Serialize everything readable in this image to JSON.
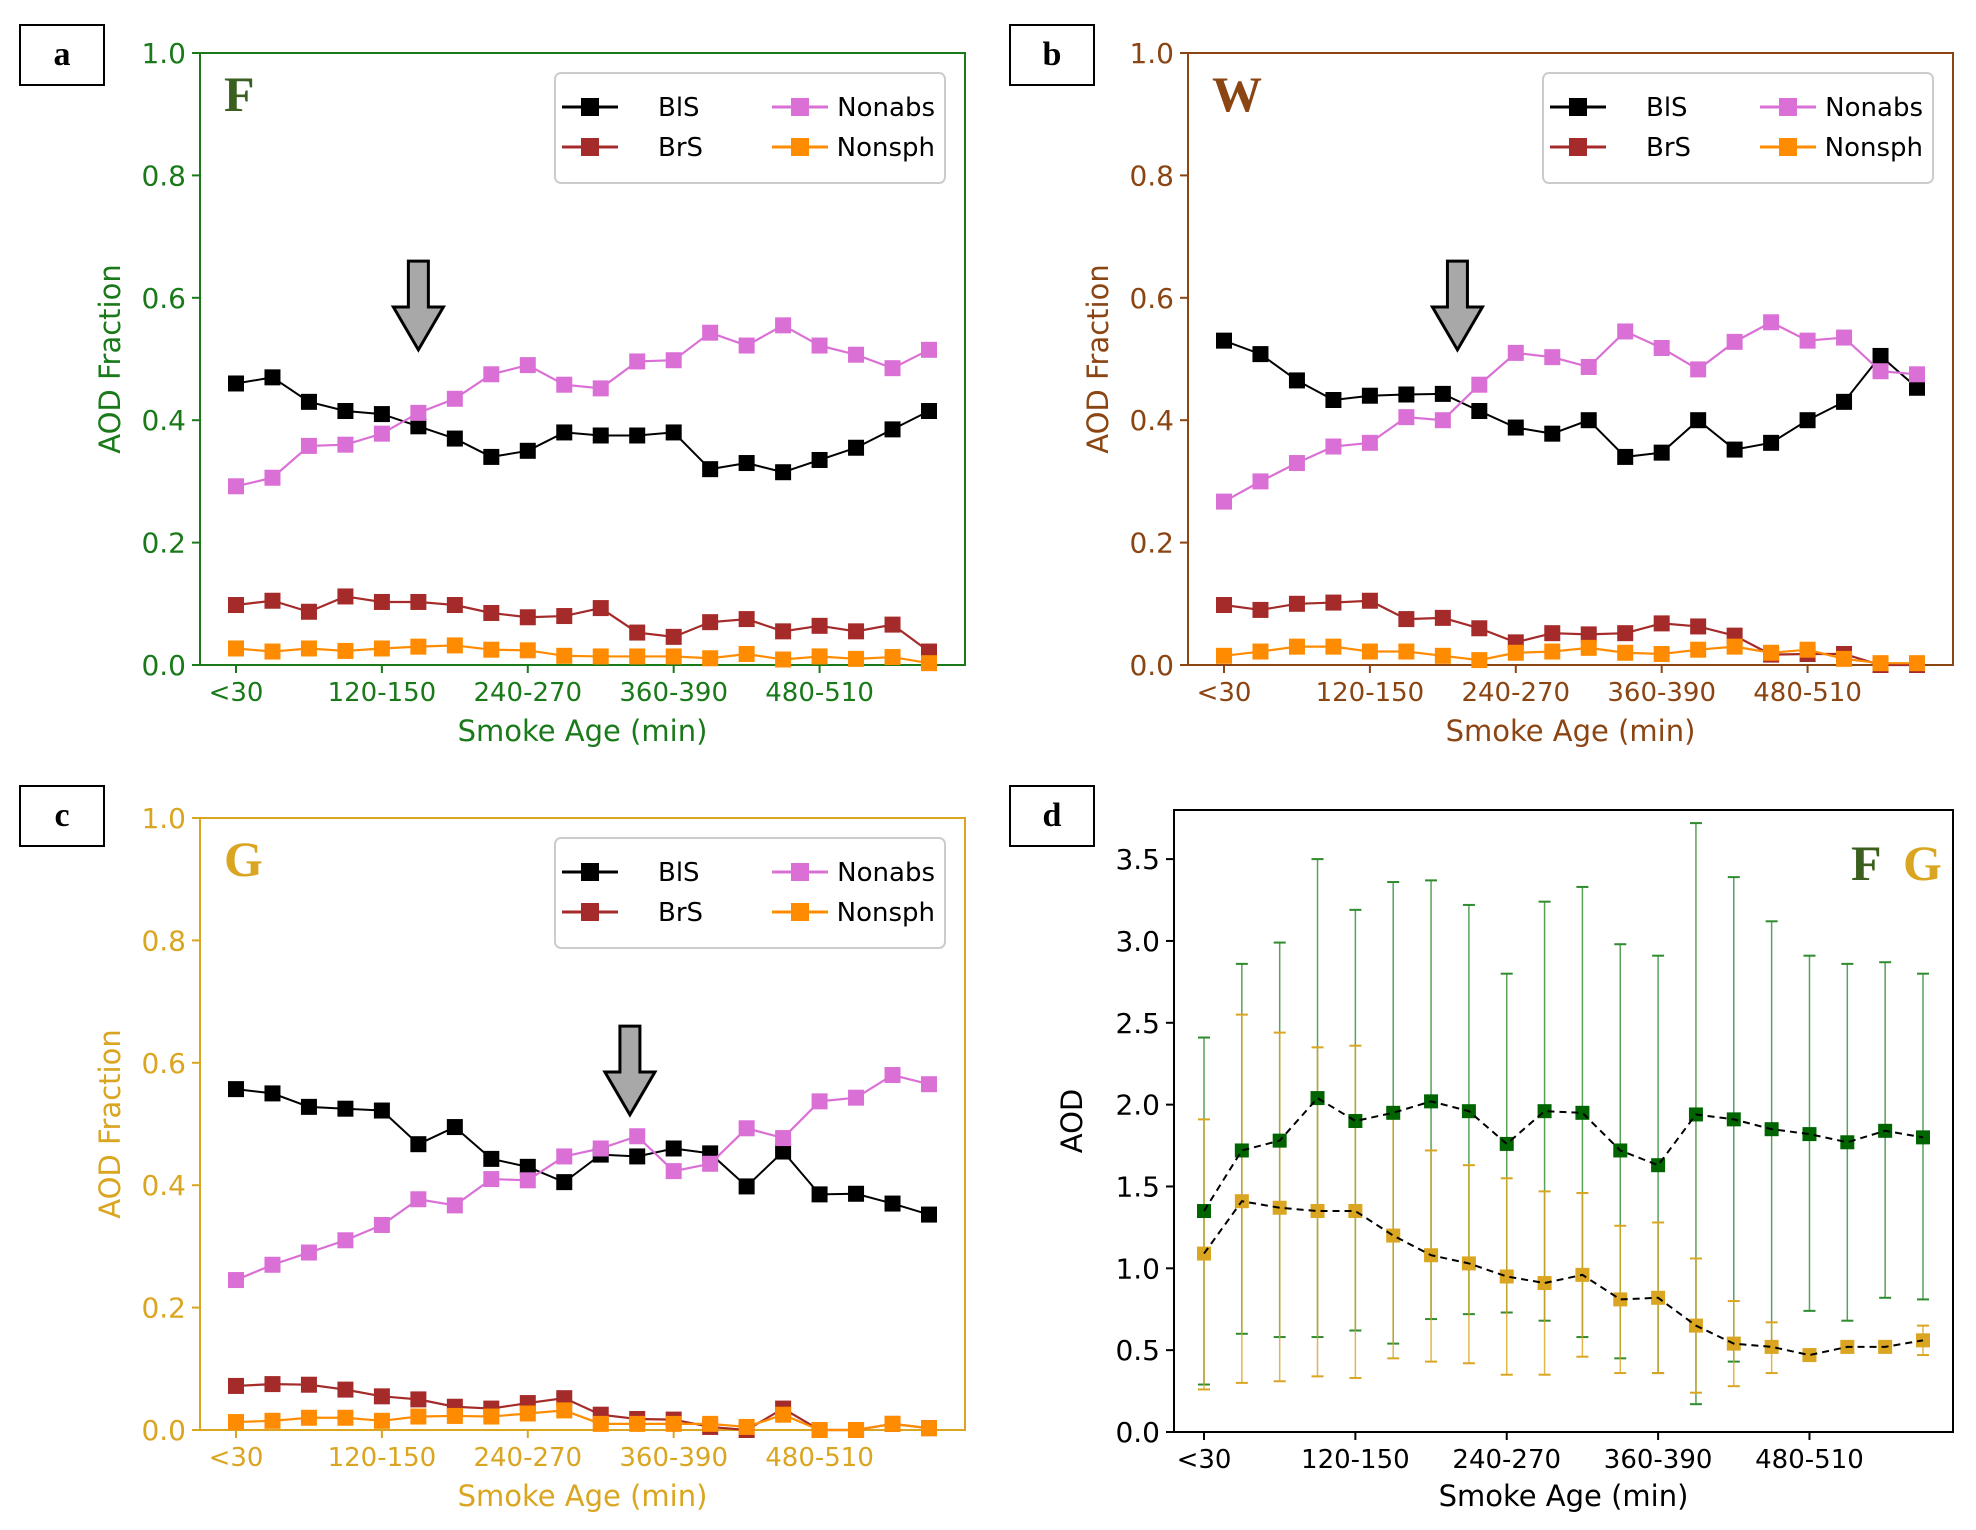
{
  "figure": {
    "panel_labels": [
      "a",
      "b",
      "c",
      "d"
    ]
  },
  "chart_data": [
    {
      "id": "a",
      "type": "line",
      "panel_label": "a",
      "site_label": "F",
      "axis_color": "#1a7a1a",
      "site_color": "#3a5f1f",
      "xlabel": "Smoke Age (min)",
      "ylabel": "AOD Fraction",
      "ylim": [
        0,
        1.0
      ],
      "yticks": [
        0.0,
        0.2,
        0.4,
        0.6,
        0.8,
        1.0
      ],
      "ytick_labels": [
        "0.0",
        "0.2",
        "0.4",
        "0.6",
        "0.8",
        "1.0"
      ],
      "xtick_indices": [
        0,
        4,
        8,
        12,
        16
      ],
      "xtick_labels": [
        "<30",
        "120-150",
        "240-270",
        "360-390",
        "480-510"
      ],
      "n_points": 20,
      "arrow_at_index": 5,
      "grid": false,
      "legend": "top-right",
      "series": [
        {
          "name": "BlS",
          "color": "#000000",
          "values": [
            0.46,
            0.47,
            0.43,
            0.415,
            0.41,
            0.39,
            0.37,
            0.34,
            0.35,
            0.38,
            0.375,
            0.375,
            0.38,
            0.32,
            0.33,
            0.315,
            0.335,
            0.355,
            0.385,
            0.415
          ]
        },
        {
          "name": "BrS",
          "color": "#a52a2a",
          "values": [
            0.098,
            0.105,
            0.087,
            0.112,
            0.103,
            0.103,
            0.098,
            0.085,
            0.078,
            0.08,
            0.093,
            0.053,
            0.046,
            0.07,
            0.075,
            0.055,
            0.064,
            0.055,
            0.066,
            0.022
          ]
        },
        {
          "name": "Nonabs",
          "color": "#da70d6",
          "values": [
            0.292,
            0.306,
            0.358,
            0.36,
            0.378,
            0.412,
            0.435,
            0.475,
            0.49,
            0.458,
            0.452,
            0.496,
            0.498,
            0.543,
            0.522,
            0.555,
            0.522,
            0.507,
            0.485,
            0.515
          ]
        },
        {
          "name": "Nonsph",
          "color": "#ff8c00",
          "values": [
            0.027,
            0.022,
            0.027,
            0.023,
            0.027,
            0.03,
            0.032,
            0.025,
            0.024,
            0.015,
            0.014,
            0.014,
            0.014,
            0.011,
            0.018,
            0.009,
            0.014,
            0.01,
            0.013,
            0.003
          ]
        }
      ]
    },
    {
      "id": "b",
      "type": "line",
      "panel_label": "b",
      "site_label": "W",
      "axis_color": "#8b4513",
      "site_color": "#8b4513",
      "xlabel": "Smoke Age (min)",
      "ylabel": "AOD Fraction",
      "ylim": [
        0,
        1.0
      ],
      "yticks": [
        0.0,
        0.2,
        0.4,
        0.6,
        0.8,
        1.0
      ],
      "ytick_labels": [
        "0.0",
        "0.2",
        "0.4",
        "0.6",
        "0.8",
        "1.0"
      ],
      "xtick_indices": [
        0,
        4,
        8,
        12,
        16
      ],
      "xtick_labels": [
        "<30",
        "120-150",
        "240-270",
        "360-390",
        "480-510"
      ],
      "n_points": 20,
      "arrow_at_index": 6.4,
      "grid": false,
      "legend": "top-right",
      "series": [
        {
          "name": "BlS",
          "color": "#000000",
          "values": [
            0.53,
            0.508,
            0.465,
            0.433,
            0.44,
            0.442,
            0.443,
            0.415,
            0.388,
            0.378,
            0.4,
            0.34,
            0.347,
            0.4,
            0.352,
            0.363,
            0.4,
            0.43,
            0.505,
            0.453
          ]
        },
        {
          "name": "BrS",
          "color": "#a52a2a",
          "values": [
            0.098,
            0.09,
            0.1,
            0.102,
            0.105,
            0.075,
            0.077,
            0.06,
            0.037,
            0.052,
            0.05,
            0.052,
            0.068,
            0.063,
            0.048,
            0.017,
            0.018,
            0.018,
            0.0,
            0.0
          ]
        },
        {
          "name": "Nonabs",
          "color": "#da70d6",
          "values": [
            0.267,
            0.3,
            0.33,
            0.357,
            0.363,
            0.405,
            0.4,
            0.458,
            0.51,
            0.503,
            0.487,
            0.545,
            0.518,
            0.483,
            0.528,
            0.56,
            0.53,
            0.535,
            0.48,
            0.475
          ]
        },
        {
          "name": "Nonsph",
          "color": "#ff8c00",
          "values": [
            0.015,
            0.022,
            0.03,
            0.03,
            0.022,
            0.022,
            0.015,
            0.008,
            0.02,
            0.022,
            0.028,
            0.02,
            0.018,
            0.025,
            0.03,
            0.02,
            0.025,
            0.01,
            0.003,
            0.003
          ]
        }
      ]
    },
    {
      "id": "c",
      "type": "line",
      "panel_label": "c",
      "site_label": "G",
      "axis_color": "#daa520",
      "site_color": "#daa520",
      "xlabel": "Smoke Age (min)",
      "ylabel": "AOD Fraction",
      "ylim": [
        0,
        1.0
      ],
      "yticks": [
        0.0,
        0.2,
        0.4,
        0.6,
        0.8,
        1.0
      ],
      "ytick_labels": [
        "0.0",
        "0.2",
        "0.4",
        "0.6",
        "0.8",
        "1.0"
      ],
      "xtick_indices": [
        0,
        4,
        8,
        12,
        16
      ],
      "xtick_labels": [
        "<30",
        "120-150",
        "240-270",
        "360-390",
        "480-510"
      ],
      "n_points": 20,
      "arrow_at_index": 10.8,
      "grid": false,
      "legend": "top-right",
      "series": [
        {
          "name": "BlS",
          "color": "#000000",
          "values": [
            0.557,
            0.55,
            0.528,
            0.525,
            0.522,
            0.467,
            0.495,
            0.443,
            0.43,
            0.405,
            0.45,
            0.447,
            0.46,
            0.452,
            0.398,
            0.455,
            0.385,
            0.386,
            0.37,
            0.352
          ]
        },
        {
          "name": "BrS",
          "color": "#a52a2a",
          "values": [
            0.072,
            0.075,
            0.074,
            0.066,
            0.055,
            0.05,
            0.038,
            0.035,
            0.044,
            0.052,
            0.025,
            0.018,
            0.017,
            0.005,
            0.0,
            0.035,
            0.0,
            0.0,
            0.01,
            0.003
          ]
        },
        {
          "name": "Nonabs",
          "color": "#da70d6",
          "values": [
            0.245,
            0.27,
            0.29,
            0.31,
            0.335,
            0.377,
            0.367,
            0.41,
            0.408,
            0.447,
            0.46,
            0.48,
            0.423,
            0.435,
            0.493,
            0.477,
            0.537,
            0.543,
            0.58,
            0.565
          ]
        },
        {
          "name": "Nonsph",
          "color": "#ff8c00",
          "values": [
            0.013,
            0.015,
            0.02,
            0.02,
            0.015,
            0.022,
            0.023,
            0.022,
            0.027,
            0.032,
            0.01,
            0.01,
            0.01,
            0.01,
            0.005,
            0.025,
            0.0,
            0.0,
            0.01,
            0.003
          ]
        }
      ]
    },
    {
      "id": "d",
      "type": "line",
      "panel_label": "d",
      "site_labels": [
        "F",
        "G"
      ],
      "site_colors": [
        "#3a5f1f",
        "#daa520"
      ],
      "axis_color": "#000000",
      "xlabel": "Smoke Age (min)",
      "ylabel": "AOD",
      "ylim": [
        0,
        3.8
      ],
      "yticks": [
        0.0,
        0.5,
        1.0,
        1.5,
        2.0,
        2.5,
        3.0,
        3.5
      ],
      "ytick_labels": [
        "0.0",
        "0.5",
        "1.0",
        "1.5",
        "2.0",
        "2.5",
        "3.0",
        "3.5"
      ],
      "xtick_indices": [
        0,
        4,
        8,
        12,
        16
      ],
      "xtick_labels": [
        "<30",
        "120-150",
        "240-270",
        "360-390",
        "480-510"
      ],
      "n_points": 20,
      "grid": false,
      "legend": "top-right",
      "series": [
        {
          "name": "F",
          "color": "#006400",
          "errcolor": "#2e8b2e",
          "values": [
            1.35,
            1.72,
            1.78,
            2.04,
            1.9,
            1.95,
            2.02,
            1.96,
            1.76,
            1.96,
            1.95,
            1.72,
            1.63,
            1.94,
            1.91,
            1.85,
            1.82,
            1.77,
            1.84,
            1.8
          ],
          "err_low": [
            0.29,
            0.6,
            0.58,
            0.58,
            0.62,
            0.54,
            0.69,
            0.72,
            0.73,
            0.68,
            0.58,
            0.45,
            0.36,
            0.17,
            0.43,
            0.55,
            0.74,
            0.68,
            0.82,
            0.81
          ],
          "err_high": [
            2.41,
            2.86,
            2.99,
            3.5,
            3.19,
            3.36,
            3.37,
            3.22,
            2.8,
            3.24,
            3.33,
            2.98,
            2.91,
            3.72,
            3.39,
            3.12,
            2.91,
            2.86,
            2.87,
            2.8
          ]
        },
        {
          "name": "G",
          "color": "#daa520",
          "errcolor": "#daa520",
          "values": [
            1.09,
            1.41,
            1.37,
            1.35,
            1.35,
            1.2,
            1.08,
            1.03,
            0.95,
            0.91,
            0.96,
            0.81,
            0.82,
            0.65,
            0.54,
            0.52,
            0.47,
            0.52,
            0.52,
            0.56
          ],
          "err_low": [
            0.26,
            0.3,
            0.31,
            0.34,
            0.33,
            0.45,
            0.43,
            0.42,
            0.35,
            0.35,
            0.46,
            0.36,
            0.36,
            0.24,
            0.28,
            0.36,
            0.47,
            0.52,
            0.52,
            0.47
          ],
          "err_high": [
            1.91,
            2.55,
            2.44,
            2.35,
            2.36,
            1.97,
            1.72,
            1.63,
            1.55,
            1.47,
            1.46,
            1.26,
            1.28,
            1.06,
            0.8,
            0.67,
            0.47,
            0.52,
            0.52,
            0.65
          ]
        }
      ]
    }
  ]
}
